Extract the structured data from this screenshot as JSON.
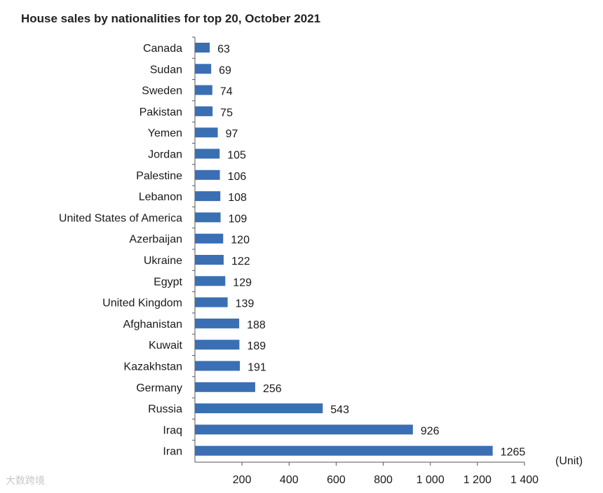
{
  "watermark": "大数跨境",
  "chart_data": {
    "type": "bar",
    "orientation": "horizontal",
    "title": "House sales by nationalities for top 20, October 2021",
    "xlabel": "(Unit)",
    "ylabel": "",
    "categories": [
      "Canada",
      "Sudan",
      "Sweden",
      "Pakistan",
      "Yemen",
      "Jordan",
      "Palestine",
      "Lebanon",
      "United States of America",
      "Azerbaijan",
      "Ukraine",
      "Egypt",
      "United Kingdom",
      "Afghanistan",
      "Kuwait",
      "Kazakhstan",
      "Germany",
      "Russia",
      "Iraq",
      "Iran"
    ],
    "values": [
      63,
      69,
      74,
      75,
      97,
      105,
      106,
      108,
      109,
      120,
      122,
      129,
      139,
      188,
      189,
      191,
      256,
      543,
      926,
      1265
    ],
    "data_labels": [
      "63",
      "69",
      "74",
      "75",
      "97",
      "105",
      "106",
      "108",
      "109",
      "120",
      "122",
      "129",
      "139",
      "188",
      "189",
      "191",
      "256",
      "543",
      "926",
      "1265"
    ],
    "xlim": [
      0,
      1400
    ],
    "x_ticks": [
      200,
      400,
      600,
      800,
      1000,
      1200,
      1400
    ],
    "x_tick_labels": [
      "200",
      "400",
      "600",
      "800",
      "1 000",
      "1 200",
      "1 400"
    ],
    "bar_color": "#3a6fb3",
    "grid": false,
    "legend": "none"
  }
}
